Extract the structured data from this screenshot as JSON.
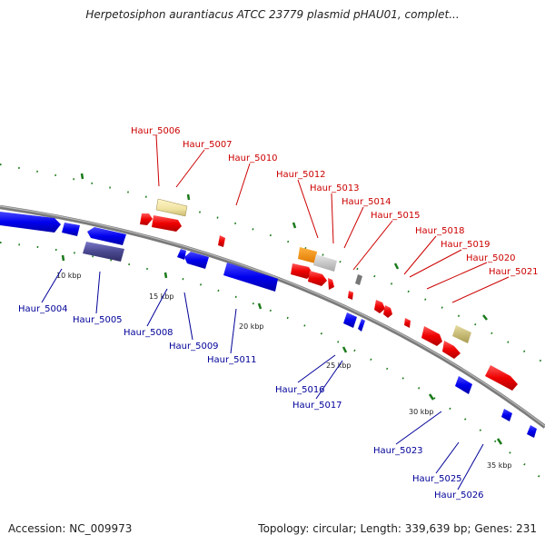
{
  "title": "Herpetosiphon aurantiacus ATCC 23779 plasmid pHAU01, complet...",
  "footer": {
    "accession": "Accession: NC_009973",
    "summary": "Topology: circular; Length: 339,639 bp; Genes: 231"
  },
  "colors": {
    "forward_label": "#cc0000",
    "reverse_label": "#000099",
    "backbone": "#888888",
    "tick": "#228b22"
  },
  "ticks": [
    {
      "id": "10kbp",
      "label": "10 kbp"
    },
    {
      "id": "15kbp",
      "label": "15 kbp"
    },
    {
      "id": "20kbp",
      "label": "20 kbp"
    },
    {
      "id": "25kbp",
      "label": "25 kbp"
    },
    {
      "id": "30kbp",
      "label": "30 kbp"
    },
    {
      "id": "35kbp",
      "label": "35 kbp"
    }
  ],
  "forward_genes": [
    {
      "id": "haur-5006",
      "name": "Haur_5006"
    },
    {
      "id": "haur-5007",
      "name": "Haur_5007"
    },
    {
      "id": "haur-5010",
      "name": "Haur_5010"
    },
    {
      "id": "haur-5012",
      "name": "Haur_5012"
    },
    {
      "id": "haur-5013",
      "name": "Haur_5013"
    },
    {
      "id": "haur-5014",
      "name": "Haur_5014"
    },
    {
      "id": "haur-5015",
      "name": "Haur_5015"
    },
    {
      "id": "haur-5018",
      "name": "Haur_5018"
    },
    {
      "id": "haur-5019",
      "name": "Haur_5019"
    },
    {
      "id": "haur-5020",
      "name": "Haur_5020"
    },
    {
      "id": "haur-5021",
      "name": "Haur_5021"
    }
  ],
  "reverse_genes": [
    {
      "id": "haur-5004",
      "name": "Haur_5004"
    },
    {
      "id": "haur-5005",
      "name": "Haur_5005"
    },
    {
      "id": "haur-5008",
      "name": "Haur_5008"
    },
    {
      "id": "haur-5009",
      "name": "Haur_5009"
    },
    {
      "id": "haur-5011",
      "name": "Haur_5011"
    },
    {
      "id": "haur-5016",
      "name": "Haur_5016"
    },
    {
      "id": "haur-5017",
      "name": "Haur_5017"
    },
    {
      "id": "haur-5023",
      "name": "Haur_5023"
    },
    {
      "id": "haur-5025",
      "name": "Haur_5025"
    },
    {
      "id": "haur-5026",
      "name": "Haur_5026"
    }
  ]
}
